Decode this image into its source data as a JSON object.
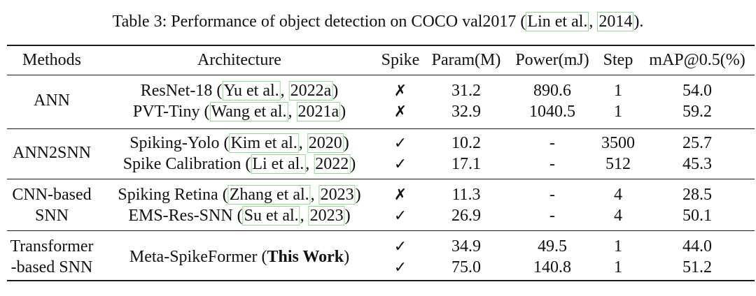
{
  "caption": {
    "prefix": "Table 3: Performance of object detection on COCO val2017 (",
    "cite_author": "Lin et al.",
    "sep": ", ",
    "cite_year": "2014",
    "suffix": ")."
  },
  "headers": {
    "methods": "Methods",
    "architecture": "Architecture",
    "spike": "Spike",
    "param": "Param(M)",
    "power": "Power(mJ)",
    "step": "Step",
    "map": "mAP@0.5(%)"
  },
  "groups": [
    {
      "method": [
        "ANN"
      ],
      "rows": [
        {
          "arch": "ResNet-18 (",
          "cite_author": "Yu et al.",
          "cite_year": "2022a",
          "close": ")",
          "spike": "✗",
          "param": "31.2",
          "power": "890.6",
          "step": "1",
          "map": "54.0"
        },
        {
          "arch": "PVT-Tiny (",
          "cite_author": "Wang et al.",
          "cite_year": "2021a",
          "close": ")",
          "spike": "✗",
          "param": "32.9",
          "power": "1040.5",
          "step": "1",
          "map": "59.2"
        }
      ]
    },
    {
      "method": [
        "ANN2SNN"
      ],
      "rows": [
        {
          "arch": "Spiking-Yolo (",
          "cite_author": "Kim et al.",
          "cite_year": "2020",
          "close": ")",
          "spike": "✓",
          "param": "10.2",
          "power": "-",
          "step": "3500",
          "map": "25.7"
        },
        {
          "arch": "Spike Calibration (",
          "cite_author": "Li et al.",
          "cite_year": "2022",
          "close": ")",
          "spike": "✓",
          "param": "17.1",
          "power": "-",
          "step": "512",
          "map": "45.3"
        }
      ]
    },
    {
      "method": [
        "CNN-based",
        "SNN"
      ],
      "rows": [
        {
          "arch": "Spiking Retina (",
          "cite_author": "Zhang et al.",
          "cite_year": "2023",
          "close": ")",
          "spike": "✗",
          "param": "11.3",
          "power": "-",
          "step": "4",
          "map": "28.5"
        },
        {
          "arch": "EMS-Res-SNN (",
          "cite_author": "Su et al.",
          "cite_year": "2023",
          "close": ")",
          "spike": "✓",
          "param": "26.9",
          "power": "-",
          "step": "4",
          "map": "50.1"
        }
      ]
    },
    {
      "method": [
        "Transformer",
        "-based SNN"
      ],
      "arch_merged": {
        "prefix": "Meta-SpikeFormer (",
        "bold": "This Work",
        "suffix": ")"
      },
      "rows": [
        {
          "spike": "✓",
          "param": "34.9",
          "power": "49.5",
          "step": "1",
          "map": "44.0"
        },
        {
          "spike": "✓",
          "param": "75.0",
          "power": "140.8",
          "step": "1",
          "map": "51.2"
        }
      ]
    }
  ]
}
